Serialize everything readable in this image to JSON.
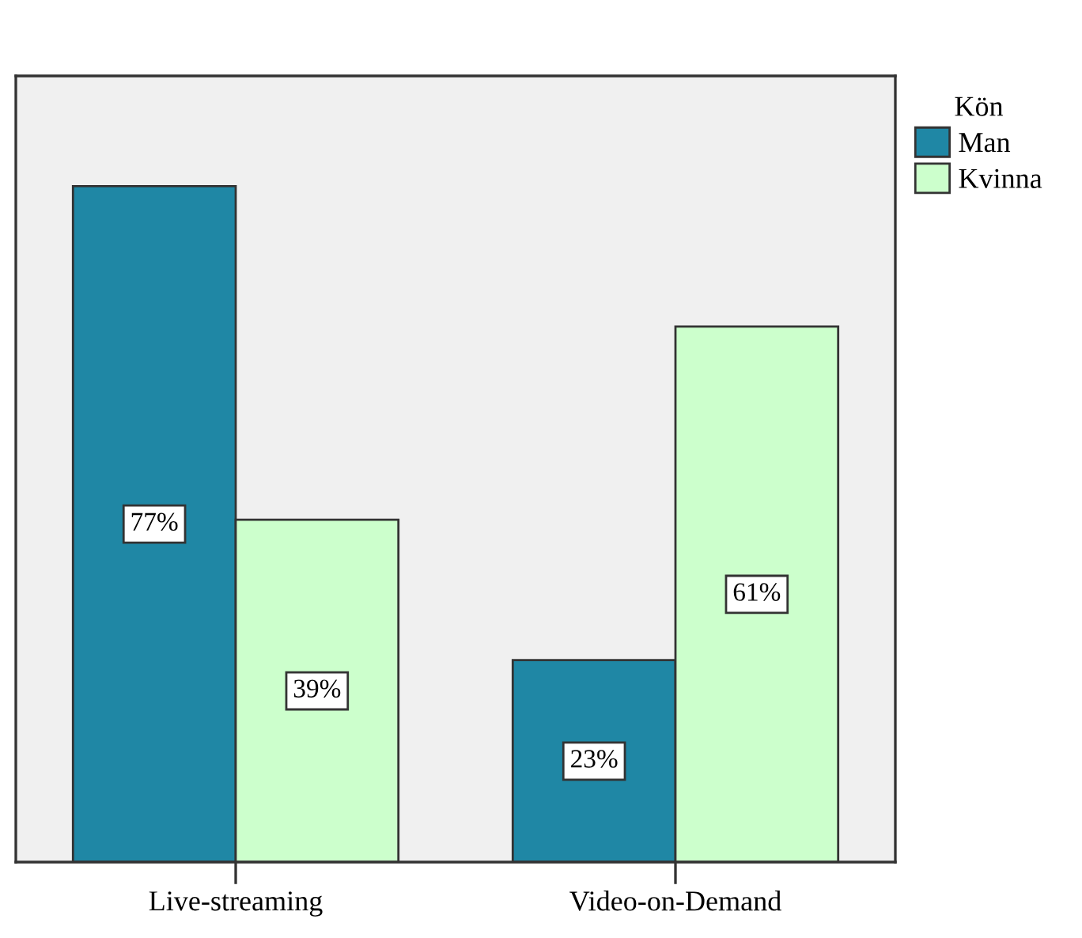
{
  "chart_data": {
    "type": "bar",
    "categories": [
      "Live-streaming",
      "Video-on-Demand"
    ],
    "series": [
      {
        "name": "Man",
        "color": "#1f87a5",
        "values": [
          77,
          23
        ],
        "value_labels": [
          "77%",
          "23%"
        ]
      },
      {
        "name": "Kvinna",
        "color": "#ccffcc",
        "values": [
          39,
          61
        ],
        "value_labels": [
          "39%",
          "61%"
        ]
      }
    ],
    "legend_title": "Kön",
    "legend": "right",
    "grid": false
  }
}
